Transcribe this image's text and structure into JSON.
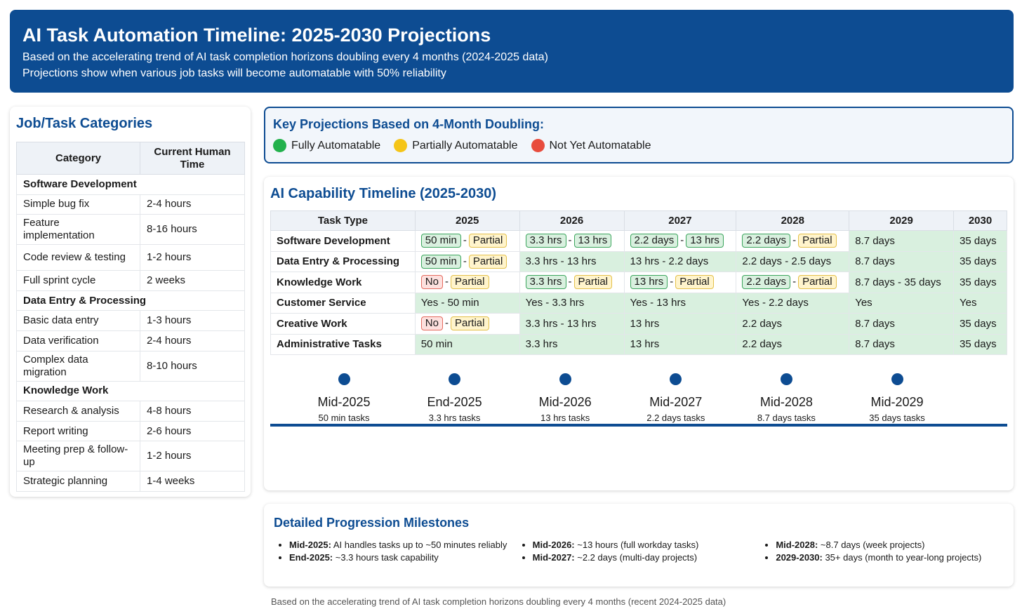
{
  "header": {
    "title": "AI Task Automation Timeline: 2025-2030 Projections",
    "line1": "Based on the accelerating trend of AI task completion horizons doubling every 4 months (2024-2025 data)",
    "line2": "Projections show when various job tasks will become automatable with 50% reliability"
  },
  "categories": {
    "title": "Job/Task Categories",
    "col_category": "Category",
    "col_time": "Current Human Time",
    "sections": [
      {
        "name": "Software Development",
        "rows": [
          {
            "task": "Simple bug fix",
            "time": "2-4 hours"
          },
          {
            "task": "Feature implementation",
            "time": "8-16 hours"
          },
          {
            "task": "Code review & testing",
            "time": "1-2 hours"
          },
          {
            "task": "Full sprint cycle",
            "time": "2 weeks"
          }
        ]
      },
      {
        "name": "Data Entry & Processing",
        "rows": [
          {
            "task": "Basic data entry",
            "time": "1-3 hours"
          },
          {
            "task": "Data verification",
            "time": "2-4 hours"
          },
          {
            "task": "Complex data migration",
            "time": "8-10 hours"
          }
        ]
      },
      {
        "name": "Knowledge Work",
        "rows": [
          {
            "task": "Research & analysis",
            "time": "4-8 hours"
          },
          {
            "task": "Report writing",
            "time": "2-6 hours"
          },
          {
            "task": "Meeting prep & follow-up",
            "time": "1-2 hours"
          },
          {
            "task": "Strategic planning",
            "time": "1-4 weeks"
          }
        ]
      }
    ]
  },
  "key": {
    "title": "Key Projections Based on 4-Month Doubling:",
    "legend": [
      {
        "label": "Fully Automatable",
        "color": "#22b14c"
      },
      {
        "label": "Partially Automatable",
        "color": "#f5c518"
      },
      {
        "label": "Not Yet Automatable",
        "color": "#e84c3d"
      }
    ]
  },
  "timeline": {
    "title": "AI Capability Timeline (2025-2030)",
    "col_task": "Task Type",
    "years": [
      "2025",
      "2026",
      "2027",
      "2028",
      "2029",
      "2030"
    ],
    "rows": [
      {
        "name": "Software Development",
        "cells": [
          {
            "type": "tags",
            "a": "50 min",
            "a_cls": "g",
            "b": "Partial",
            "b_cls": "y"
          },
          {
            "type": "tags",
            "a": "3.3 hrs",
            "a_cls": "g",
            "b": "13 hrs",
            "b_cls": "g"
          },
          {
            "type": "tags",
            "a": "2.2 days",
            "a_cls": "g",
            "b": "13 hrs",
            "b_cls": "g"
          },
          {
            "type": "tags",
            "a": "2.2 days",
            "a_cls": "g",
            "b": "Partial",
            "b_cls": "y"
          },
          {
            "type": "full",
            "text": "8.7 days"
          },
          {
            "type": "full",
            "text": "35 days"
          }
        ]
      },
      {
        "name": "Data Entry & Processing",
        "cells": [
          {
            "type": "tags",
            "a": "50 min",
            "a_cls": "g",
            "b": "Partial",
            "b_cls": "y"
          },
          {
            "type": "full",
            "text": "3.3 hrs - 13 hrs"
          },
          {
            "type": "full",
            "text": "13 hrs - 2.2 days"
          },
          {
            "type": "full",
            "text": "2.2 days - 2.5 days"
          },
          {
            "type": "full",
            "text": "8.7 days"
          },
          {
            "type": "full",
            "text": "35 days"
          }
        ]
      },
      {
        "name": "Knowledge Work",
        "cells": [
          {
            "type": "tags",
            "a": "No",
            "a_cls": "r",
            "b": "Partial",
            "b_cls": "y"
          },
          {
            "type": "tags",
            "a": "3.3 hrs",
            "a_cls": "g",
            "b": "Partial",
            "b_cls": "y"
          },
          {
            "type": "tags",
            "a": "13 hrs",
            "a_cls": "g",
            "b": "Partial",
            "b_cls": "y"
          },
          {
            "type": "tags",
            "a": "2.2 days",
            "a_cls": "g",
            "b": "Partial",
            "b_cls": "y"
          },
          {
            "type": "full",
            "text": "8.7 days - 35 days"
          },
          {
            "type": "full",
            "text": "35 days"
          }
        ]
      },
      {
        "name": "Customer Service",
        "cells": [
          {
            "type": "full",
            "text": "Yes - 50 min"
          },
          {
            "type": "full",
            "text": "Yes - 3.3 hrs"
          },
          {
            "type": "full",
            "text": "Yes - 13 hrs"
          },
          {
            "type": "full",
            "text": "Yes - 2.2 days"
          },
          {
            "type": "full",
            "text": "Yes"
          },
          {
            "type": "full",
            "text": "Yes"
          }
        ]
      },
      {
        "name": "Creative Work",
        "cells": [
          {
            "type": "tags",
            "a": "No",
            "a_cls": "r",
            "b": "Partial",
            "b_cls": "y"
          },
          {
            "type": "full",
            "text": "3.3 hrs - 13 hrs"
          },
          {
            "type": "full",
            "text": "13 hrs"
          },
          {
            "type": "full",
            "text": "2.2 days"
          },
          {
            "type": "full",
            "text": "8.7 days"
          },
          {
            "type": "full",
            "text": "35 days"
          }
        ]
      },
      {
        "name": "Administrative Tasks",
        "cells": [
          {
            "type": "full",
            "text": "50 min"
          },
          {
            "type": "full",
            "text": "3.3 hrs"
          },
          {
            "type": "full",
            "text": "13 hrs"
          },
          {
            "type": "full",
            "text": "2.2 days"
          },
          {
            "type": "full",
            "text": "8.7 days"
          },
          {
            "type": "full",
            "text": "35 days"
          }
        ]
      }
    ],
    "points": [
      {
        "label": "Mid-2025",
        "sub": "50 min tasks"
      },
      {
        "label": "End-2025",
        "sub": "3.3 hrs tasks"
      },
      {
        "label": "Mid-2026",
        "sub": "13 hrs tasks"
      },
      {
        "label": "Mid-2027",
        "sub": "2.2 days tasks"
      },
      {
        "label": "Mid-2028",
        "sub": "8.7 days tasks"
      },
      {
        "label": "Mid-2029",
        "sub": "35 days tasks"
      }
    ]
  },
  "milestones": {
    "title": "Detailed Progression Milestones",
    "columns": [
      [
        {
          "key": "Mid-2025:",
          "text": " AI handles tasks up to ~50 minutes reliably"
        },
        {
          "key": "End-2025:",
          "text": " ~3.3 hours task capability"
        }
      ],
      [
        {
          "key": "Mid-2026:",
          "text": " ~13 hours (full workday tasks)"
        },
        {
          "key": "Mid-2027:",
          "text": " ~2.2 days (multi-day projects)"
        }
      ],
      [
        {
          "key": "Mid-2028:",
          "text": " ~8.7 days (week projects)"
        },
        {
          "key": "2029-2030:",
          "text": " 35+ days (month to year-long projects)"
        }
      ]
    ]
  },
  "footnote": "Based on the accelerating trend of AI task completion horizons doubling every 4 months (recent 2024-2025 data)"
}
